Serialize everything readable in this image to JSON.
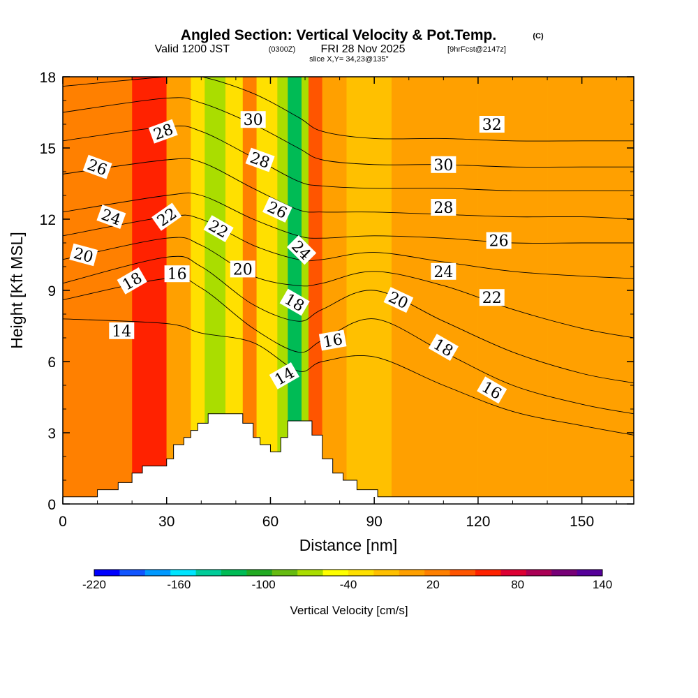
{
  "header": {
    "title": "Angled Section: Vertical Velocity & Pot.Temp.",
    "title_units": "(C)",
    "valid_prefix": "Valid 1200 JST",
    "valid_z": "(0300Z)",
    "valid_date": "FRI 28 Nov 2025",
    "valid_fcst": "[9hrFcst@2147z]",
    "slice": "slice X,Y= 34,23@135°"
  },
  "chart_data": {
    "type": "contour-section",
    "title": "Angled Section: Vertical Velocity & Pot.Temp.",
    "xlabel": "Distance [nm]",
    "ylabel": "Height [Kft MSL]",
    "xlim": [
      0,
      165
    ],
    "ylim": [
      0,
      18
    ],
    "xticks": [
      0,
      30,
      60,
      90,
      120,
      150
    ],
    "xtick_labels": [
      "0",
      "30",
      "60",
      "90",
      "120",
      "150"
    ],
    "yticks": [
      0,
      3,
      6,
      9,
      12,
      15,
      18
    ],
    "ytick_labels": [
      "0",
      "3",
      "6",
      "9",
      "12",
      "15",
      "18"
    ],
    "colorbar": {
      "label": "Vertical Velocity [cm/s]",
      "range": [
        -220,
        140
      ],
      "tick_values": [
        -220,
        -160,
        -100,
        -40,
        20,
        80,
        140
      ],
      "tick_labels": [
        "-220",
        "-160",
        "-100",
        "-40",
        "20",
        "80",
        "140"
      ],
      "colors": [
        "#0000ff",
        "#1155ff",
        "#0099ff",
        "#00e5ff",
        "#00cc99",
        "#00bb55",
        "#22aa22",
        "#66bb11",
        "#aadd00",
        "#ffff00",
        "#ffe000",
        "#ffc000",
        "#ffa000",
        "#ff8000",
        "#ff5500",
        "#ff2200",
        "#dd0033",
        "#aa0055",
        "#770077",
        "#550099"
      ]
    },
    "velocity_bands": [
      {
        "x0": 0,
        "x1": 20,
        "value": 15
      },
      {
        "x0": 20,
        "x1": 30,
        "value": 55
      },
      {
        "x0": 30,
        "x1": 37,
        "value": 10
      },
      {
        "x0": 37,
        "x1": 41,
        "value": -30
      },
      {
        "x0": 41,
        "x1": 47,
        "value": -65
      },
      {
        "x0": 47,
        "x1": 52,
        "value": -30
      },
      {
        "x0": 52,
        "x1": 56,
        "value": 20
      },
      {
        "x0": 56,
        "x1": 62,
        "value": -40
      },
      {
        "x0": 62,
        "x1": 65,
        "value": -75
      },
      {
        "x0": 65,
        "x1": 69,
        "value": -130
      },
      {
        "x0": 69,
        "x1": 71,
        "value": -60
      },
      {
        "x0": 71,
        "x1": 75,
        "value": 40
      },
      {
        "x0": 75,
        "x1": 82,
        "value": 0
      },
      {
        "x0": 82,
        "x1": 95,
        "value": -10
      },
      {
        "x0": 95,
        "x1": 120,
        "value": 0
      },
      {
        "x0": 120,
        "x1": 140,
        "value": 10
      },
      {
        "x0": 140,
        "x1": 165,
        "value": 0
      }
    ],
    "terrain": [
      [
        0,
        0.3
      ],
      [
        10,
        0.3
      ],
      [
        10,
        0.6
      ],
      [
        16,
        0.6
      ],
      [
        16,
        0.9
      ],
      [
        20,
        0.9
      ],
      [
        20,
        1.3
      ],
      [
        23,
        1.3
      ],
      [
        23,
        1.6
      ],
      [
        30,
        1.6
      ],
      [
        30,
        1.9
      ],
      [
        32,
        1.9
      ],
      [
        32,
        2.5
      ],
      [
        35,
        2.5
      ],
      [
        35,
        2.8
      ],
      [
        37,
        2.8
      ],
      [
        37,
        3.1
      ],
      [
        39,
        3.1
      ],
      [
        39,
        3.4
      ],
      [
        42,
        3.4
      ],
      [
        42,
        3.8
      ],
      [
        52,
        3.8
      ],
      [
        52,
        3.4
      ],
      [
        55,
        3.4
      ],
      [
        55,
        2.8
      ],
      [
        57,
        2.8
      ],
      [
        57,
        2.5
      ],
      [
        60,
        2.5
      ],
      [
        60,
        2.2
      ],
      [
        63,
        2.2
      ],
      [
        63,
        2.8
      ],
      [
        65,
        2.8
      ],
      [
        65,
        3.5
      ],
      [
        72,
        3.5
      ],
      [
        72,
        2.9
      ],
      [
        75,
        2.9
      ],
      [
        75,
        1.9
      ],
      [
        78,
        1.9
      ],
      [
        78,
        1.3
      ],
      [
        81,
        1.3
      ],
      [
        81,
        1.0
      ],
      [
        85,
        1.0
      ],
      [
        85,
        0.6
      ],
      [
        91,
        0.6
      ],
      [
        91,
        0.3
      ],
      [
        165,
        0.3
      ]
    ],
    "isotherms": [
      {
        "label": "14",
        "pts": [
          [
            0,
            7.8
          ],
          [
            30,
            7.6
          ],
          [
            40,
            7.2
          ],
          [
            55,
            6.8
          ],
          [
            68,
            5.6
          ],
          [
            75,
            6.0
          ],
          [
            90,
            6.2
          ],
          [
            110,
            5.0
          ],
          [
            130,
            3.9
          ],
          [
            150,
            3.3
          ],
          [
            165,
            2.9
          ]
        ]
      },
      {
        "label": "16",
        "pts": [
          [
            0,
            8.6
          ],
          [
            30,
            9.5
          ],
          [
            40,
            9.1
          ],
          [
            55,
            7.4
          ],
          [
            68,
            6.4
          ],
          [
            75,
            6.9
          ],
          [
            90,
            7.8
          ],
          [
            110,
            6.4
          ],
          [
            130,
            5.0
          ],
          [
            150,
            4.2
          ],
          [
            165,
            3.8
          ]
        ]
      },
      {
        "label": "18",
        "pts": [
          [
            0,
            9.3
          ],
          [
            30,
            10.4
          ],
          [
            40,
            10.0
          ],
          [
            55,
            8.4
          ],
          [
            68,
            7.7
          ],
          [
            75,
            8.2
          ],
          [
            90,
            9.0
          ],
          [
            110,
            7.7
          ],
          [
            130,
            6.4
          ],
          [
            150,
            5.5
          ],
          [
            165,
            5.1
          ]
        ]
      },
      {
        "label": "20",
        "pts": [
          [
            0,
            10.3
          ],
          [
            30,
            11.2
          ],
          [
            40,
            10.9
          ],
          [
            55,
            9.6
          ],
          [
            68,
            9.2
          ],
          [
            75,
            9.3
          ],
          [
            90,
            9.8
          ],
          [
            110,
            9.2
          ],
          [
            130,
            8.2
          ],
          [
            150,
            7.4
          ],
          [
            165,
            7.0
          ]
        ]
      },
      {
        "label": "22",
        "pts": [
          [
            0,
            11.3
          ],
          [
            30,
            12.1
          ],
          [
            40,
            12.0
          ],
          [
            55,
            10.9
          ],
          [
            68,
            10.3
          ],
          [
            75,
            10.3
          ],
          [
            90,
            10.6
          ],
          [
            110,
            10.2
          ],
          [
            130,
            9.8
          ],
          [
            150,
            9.6
          ],
          [
            165,
            9.5
          ]
        ]
      },
      {
        "label": "24",
        "pts": [
          [
            0,
            12.3
          ],
          [
            30,
            13.0
          ],
          [
            40,
            13.0
          ],
          [
            55,
            12.0
          ],
          [
            68,
            11.3
          ],
          [
            75,
            11.2
          ],
          [
            90,
            11.3
          ],
          [
            110,
            11.2
          ],
          [
            130,
            11.0
          ],
          [
            150,
            11.0
          ],
          [
            165,
            11.0
          ]
        ]
      },
      {
        "label": "26",
        "pts": [
          [
            0,
            13.9
          ],
          [
            30,
            14.5
          ],
          [
            40,
            14.4
          ],
          [
            55,
            13.3
          ],
          [
            68,
            12.4
          ],
          [
            75,
            12.3
          ],
          [
            90,
            12.3
          ],
          [
            110,
            12.2
          ],
          [
            130,
            12.1
          ],
          [
            150,
            12.1
          ],
          [
            165,
            12.0
          ]
        ]
      },
      {
        "label": "28",
        "pts": [
          [
            0,
            15.3
          ],
          [
            30,
            15.9
          ],
          [
            40,
            15.7
          ],
          [
            55,
            14.6
          ],
          [
            68,
            13.6
          ],
          [
            75,
            13.4
          ],
          [
            90,
            13.3
          ],
          [
            110,
            13.3
          ],
          [
            130,
            13.2
          ],
          [
            150,
            13.2
          ],
          [
            165,
            13.2
          ]
        ]
      },
      {
        "label": "30",
        "pts": [
          [
            0,
            16.5
          ],
          [
            30,
            17.1
          ],
          [
            40,
            16.9
          ],
          [
            55,
            16.0
          ],
          [
            68,
            15.0
          ],
          [
            75,
            14.5
          ],
          [
            90,
            14.3
          ],
          [
            110,
            14.3
          ],
          [
            130,
            14.2
          ],
          [
            150,
            14.2
          ],
          [
            165,
            14.2
          ]
        ]
      },
      {
        "label": "32",
        "pts": [
          [
            0,
            17.6
          ],
          [
            30,
            18.0
          ],
          [
            40,
            18.0
          ],
          [
            55,
            17.3
          ],
          [
            68,
            16.3
          ],
          [
            75,
            15.7
          ],
          [
            90,
            15.4
          ],
          [
            110,
            15.4
          ],
          [
            130,
            15.3
          ],
          [
            150,
            15.3
          ],
          [
            165,
            15.3
          ]
        ]
      }
    ],
    "contour_labels": [
      {
        "text": "28",
        "x": 29,
        "y": 15.7,
        "rot": -20
      },
      {
        "text": "26",
        "x": 10,
        "y": 14.2,
        "rot": 20
      },
      {
        "text": "24",
        "x": 14,
        "y": 12.1,
        "rot": 20
      },
      {
        "text": "22",
        "x": 30,
        "y": 12.1,
        "rot": -35
      },
      {
        "text": "20",
        "x": 6,
        "y": 10.5,
        "rot": 15
      },
      {
        "text": "18",
        "x": 20,
        "y": 9.4,
        "rot": -30
      },
      {
        "text": "16",
        "x": 33,
        "y": 9.7,
        "rot": 0
      },
      {
        "text": "14",
        "x": 17,
        "y": 7.3,
        "rot": 0
      },
      {
        "text": "30",
        "x": 55,
        "y": 16.2,
        "rot": 0
      },
      {
        "text": "28",
        "x": 57,
        "y": 14.5,
        "rot": 20
      },
      {
        "text": "26",
        "x": 62,
        "y": 12.4,
        "rot": 25
      },
      {
        "text": "22",
        "x": 45,
        "y": 11.6,
        "rot": 30
      },
      {
        "text": "20",
        "x": 52,
        "y": 9.9,
        "rot": 0
      },
      {
        "text": "24",
        "x": 69,
        "y": 10.7,
        "rot": 45
      },
      {
        "text": "18",
        "x": 67,
        "y": 8.5,
        "rot": 30
      },
      {
        "text": "16",
        "x": 78,
        "y": 6.9,
        "rot": -10
      },
      {
        "text": "14",
        "x": 64,
        "y": 5.4,
        "rot": -30
      },
      {
        "text": "32",
        "x": 124,
        "y": 16.0,
        "rot": 0
      },
      {
        "text": "30",
        "x": 110,
        "y": 14.3,
        "rot": 0
      },
      {
        "text": "28",
        "x": 110,
        "y": 12.5,
        "rot": 0
      },
      {
        "text": "26",
        "x": 126,
        "y": 11.1,
        "rot": 0
      },
      {
        "text": "24",
        "x": 110,
        "y": 9.8,
        "rot": 0
      },
      {
        "text": "22",
        "x": 124,
        "y": 8.7,
        "rot": 0
      },
      {
        "text": "20",
        "x": 97,
        "y": 8.6,
        "rot": 25
      },
      {
        "text": "18",
        "x": 110,
        "y": 6.6,
        "rot": 30
      },
      {
        "text": "16",
        "x": 124,
        "y": 4.8,
        "rot": 30
      }
    ]
  }
}
